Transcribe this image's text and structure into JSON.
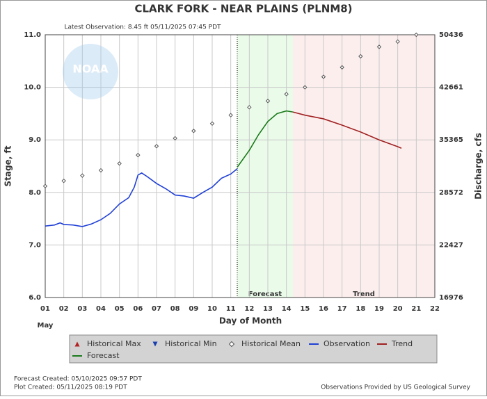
{
  "chart_data": {
    "type": "line",
    "title": "CLARK FORK - NEAR PLAINS  (PLNM8)",
    "subtitle": "Latest Observation: 8.45 ft 05/11/2025 07:45 PDT",
    "logo_text": "NOAA",
    "x_label": "Day of Month",
    "x_sublabel": "May",
    "y_label": "Stage, ft",
    "y2_label": "Discharge, cfs",
    "xlim": [
      1,
      22
    ],
    "xticks": [
      {
        "value": 1,
        "label": "01"
      },
      {
        "value": 2,
        "label": "02"
      },
      {
        "value": 3,
        "label": "03"
      },
      {
        "value": 4,
        "label": "04"
      },
      {
        "value": 5,
        "label": "05"
      },
      {
        "value": 6,
        "label": "06"
      },
      {
        "value": 7,
        "label": "07"
      },
      {
        "value": 8,
        "label": "08"
      },
      {
        "value": 9,
        "label": "09"
      },
      10,
      11,
      12,
      13,
      14,
      15,
      16,
      17,
      18,
      19,
      20,
      21,
      22
    ],
    "ylim": [
      6,
      11
    ],
    "yticks": [
      {
        "value": 6,
        "label": "6.0"
      },
      {
        "value": 7,
        "label": "7.0"
      },
      {
        "value": 8,
        "label": "8.0"
      },
      {
        "value": 9,
        "label": "9.0"
      },
      {
        "value": 10,
        "label": "10.0"
      },
      {
        "value": 11,
        "label": "11.0"
      }
    ],
    "y2ticks": [
      16976,
      22427,
      28572,
      35365,
      42661,
      50436
    ],
    "grid": true,
    "regions": [
      {
        "label": "Forecast",
        "x": [
          11.35,
          14.35
        ],
        "color": "#eafbea"
      },
      {
        "label": "Trend",
        "x": [
          14.35,
          22
        ],
        "color": "#fdeeee"
      }
    ],
    "series": [
      {
        "name": "Historical Max",
        "style": "marker",
        "marker": "triangle-up",
        "color": "#b22222",
        "x": [],
        "values": []
      },
      {
        "name": "Historical Min",
        "style": "marker",
        "marker": "triangle-down",
        "color": "#1a3fb0",
        "x": [],
        "values": []
      },
      {
        "name": "Historical Mean",
        "style": "marker",
        "marker": "diamond",
        "color": "#555555",
        "x": [
          1,
          2,
          3,
          4,
          5,
          6,
          7,
          8,
          9,
          10,
          11,
          12,
          13,
          14,
          15,
          16,
          17,
          18,
          19,
          20,
          21
        ],
        "values": [
          8.12,
          8.22,
          8.32,
          8.42,
          8.55,
          8.71,
          8.88,
          9.03,
          9.17,
          9.31,
          9.47,
          9.62,
          9.74,
          9.87,
          10.0,
          10.2,
          10.38,
          10.59,
          10.77,
          10.87,
          11.0
        ]
      },
      {
        "name": "Observation",
        "style": "line",
        "color": "#1f3fd6",
        "x": [
          1,
          1.5,
          1.8,
          2,
          2.5,
          3,
          3.5,
          4,
          4.5,
          5,
          5.5,
          5.8,
          6,
          6.2,
          6.5,
          7,
          7.5,
          8,
          8.5,
          9,
          9.5,
          10,
          10.5,
          11,
          11.35
        ],
        "values": [
          7.36,
          7.38,
          7.42,
          7.39,
          7.38,
          7.35,
          7.4,
          7.48,
          7.6,
          7.78,
          7.9,
          8.1,
          8.33,
          8.37,
          8.3,
          8.17,
          8.07,
          7.95,
          7.93,
          7.89,
          8.0,
          8.1,
          8.27,
          8.35,
          8.45
        ]
      },
      {
        "name": "Trend",
        "style": "line",
        "color": "#a02020",
        "x": [
          14.35,
          15,
          16,
          17,
          18,
          19,
          20,
          20.2
        ],
        "values": [
          9.53,
          9.47,
          9.4,
          9.28,
          9.15,
          9.0,
          8.87,
          8.84
        ]
      },
      {
        "name": "Forecast",
        "style": "line",
        "color": "#1a7a1a",
        "x": [
          11.35,
          12,
          12.5,
          13,
          13.5,
          14,
          14.35
        ],
        "values": [
          8.48,
          8.8,
          9.1,
          9.35,
          9.5,
          9.55,
          9.53
        ]
      }
    ],
    "footer_left": [
      "Forecast Created: 05/10/2025 09:57 PDT",
      "Plot Created: 05/11/2025 08:19 PDT"
    ],
    "footer_right": "Observations Provided by US Geological Survey"
  }
}
